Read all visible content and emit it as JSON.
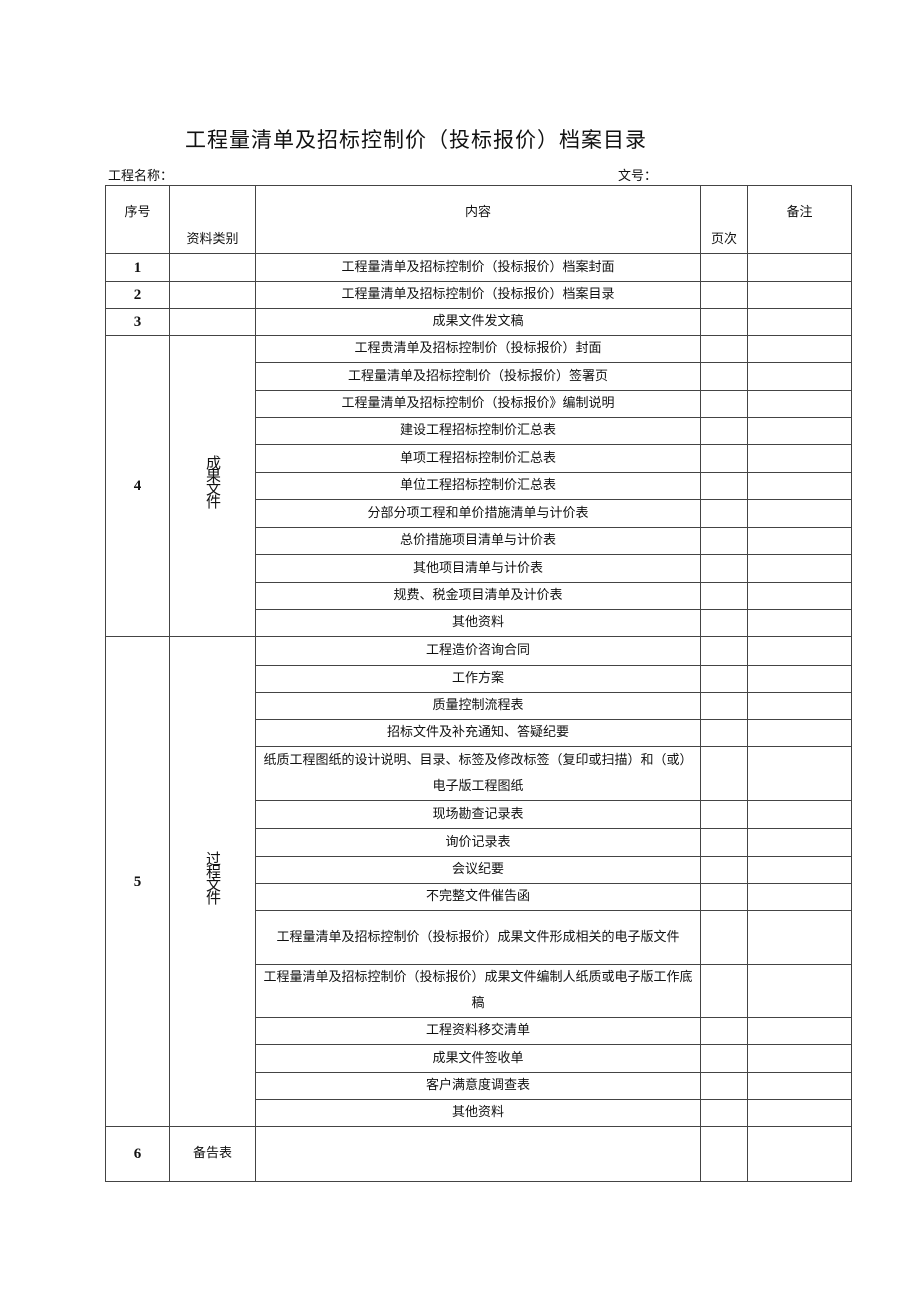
{
  "title": "工程量清单及招标控制价（投标报价）档案目录",
  "project_name_label": "工程名称：",
  "doc_no_label": "文号：",
  "headers": {
    "seq": "序号",
    "category": "资料类别",
    "content": "内容",
    "pages": "页次",
    "remarks": "备注"
  },
  "rows": [
    {
      "seq": "1",
      "content": "工程量清单及招标控制价（投标报价）档案封面"
    },
    {
      "seq": "2",
      "content": "工程量清单及招标控制价（投标报价）档案目录"
    },
    {
      "seq": "3",
      "content": "成果文件发文稿"
    }
  ],
  "group4": {
    "seq": "4",
    "category": "成果文件",
    "items": [
      "工程贵清单及招标控制价（投标报价）封面",
      "工程量清单及招标控制价（投标报价）签署页",
      "工程量清单及招标控制价（投标报价》编制说明",
      "建设工程招标控制价汇总表",
      "单项工程招标控制价汇总表",
      "单位工程招标控制价汇总表",
      "分部分项工程和单价措施清单与计价表",
      "总价措施项目清单与计价表",
      "其他项目清单与计价表",
      "规费、税金项目清单及计价表",
      "其他资料"
    ]
  },
  "group5": {
    "seq": "5",
    "category": "过程文件",
    "items": [
      "工程造价咨询合同",
      "工作方案",
      "质量控制流程表",
      "招标文件及补充通知、答疑纪要",
      "纸质工程图纸的设计说明、目录、标签及修改标签（复印或扫描）和（或）电子版工程图纸",
      "现场勘查记录表",
      "询价记录表",
      "会议纪要",
      "不完整文件催告函",
      "工程量清单及招标控制价（投标报价）成果文件形成相关的电子版文件",
      "工程量清单及招标控制价（投标报价）成果文件编制人纸质或电子版工作底稿",
      "工程资料移交清单",
      "成果文件签收单",
      "客户满意度调查表",
      "其他资料"
    ]
  },
  "row6": {
    "seq": "6",
    "category": "备告表"
  }
}
